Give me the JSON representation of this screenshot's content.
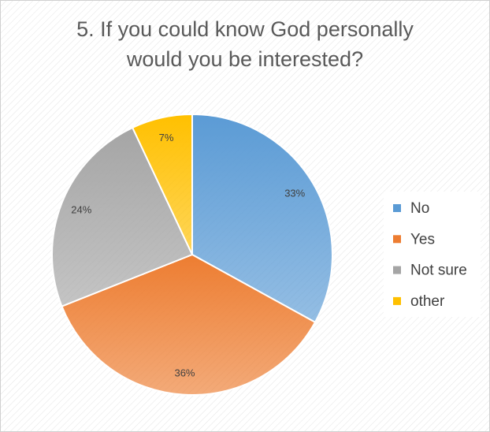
{
  "chart_data": {
    "type": "pie",
    "title": "5. If you could know God personally would you be interested?",
    "categories": [
      "No",
      "Yes",
      "Not sure",
      "other"
    ],
    "values": [
      33,
      36,
      24,
      7
    ],
    "value_labels": [
      "33%",
      "36%",
      "24%",
      "7%"
    ],
    "colors": [
      "#5b9bd5",
      "#ed7d31",
      "#a5a5a5",
      "#ffc000"
    ],
    "legend": "right"
  }
}
